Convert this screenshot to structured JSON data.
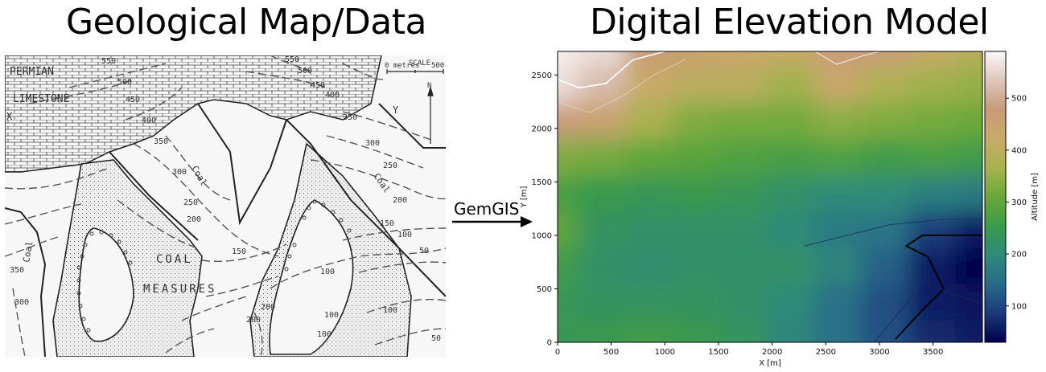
{
  "titles": {
    "left": "Geological Map/Data",
    "right": "Digital Elevation Model"
  },
  "arrow": {
    "label": "GemGIS"
  },
  "geo_map": {
    "labels": {
      "permian": "PERMIAN",
      "limestone": "LIMESTONE",
      "coal_measures_1": "COAL",
      "coal_measures_2": "MEASURES",
      "scale_title": "SCALE",
      "scale_left": "0 metres",
      "scale_right": "500",
      "north": "N",
      "coal_a": "Coal",
      "coal_b": "Coal",
      "coal_c": "Coal",
      "x_mark": "X",
      "y_mark": "Y"
    },
    "contours": [
      "550",
      "500",
      "450",
      "400",
      "350",
      "300",
      "250",
      "200",
      "150",
      "100",
      "50",
      "350",
      "300",
      "250",
      "200",
      "150",
      "100",
      "50",
      "400",
      "450",
      "500",
      "550",
      "350",
      "300",
      "200",
      "100",
      "150",
      "200",
      "100",
      "100"
    ]
  },
  "colors": {
    "background": "#ffffff",
    "map_paper": "#f7f7f7",
    "ink": "#333333"
  },
  "chart_data": {
    "type": "heatmap",
    "title": "",
    "xlabel": "X [m]",
    "ylabel": "Y [m]",
    "xlim": [
      0,
      3960
    ],
    "ylim": [
      0,
      2720
    ],
    "xticks": [
      0,
      500,
      1000,
      1500,
      2000,
      2500,
      3000,
      3500
    ],
    "yticks": [
      0,
      500,
      1000,
      1500,
      2000,
      2500
    ],
    "colorbar": {
      "label": "Altitude [m]",
      "range": [
        30,
        590
      ],
      "ticks": [
        100,
        200,
        300,
        400,
        500
      ],
      "colormap": "gist_earth",
      "stops": [
        "#00004a",
        "#1a3a7a",
        "#286a8a",
        "#2e8a7a",
        "#3a9a4a",
        "#6aa838",
        "#a8b24e",
        "#c8aa68",
        "#c89a78",
        "#dcc6bc",
        "#fcf8f8"
      ]
    },
    "contour_levels": [
      100,
      200,
      300,
      400,
      500
    ],
    "grid": false,
    "elevation_features": [
      {
        "type": "high",
        "x": 300,
        "y": 2700,
        "z": 585
      },
      {
        "type": "high",
        "x": 2600,
        "y": 2720,
        "z": 490
      },
      {
        "type": "low",
        "x": 3900,
        "y": 650,
        "z": 30
      },
      {
        "type": "low",
        "x": 3400,
        "y": 350,
        "z": 60
      },
      {
        "type": "low",
        "x": 2500,
        "y": 800,
        "z": 170
      }
    ]
  }
}
